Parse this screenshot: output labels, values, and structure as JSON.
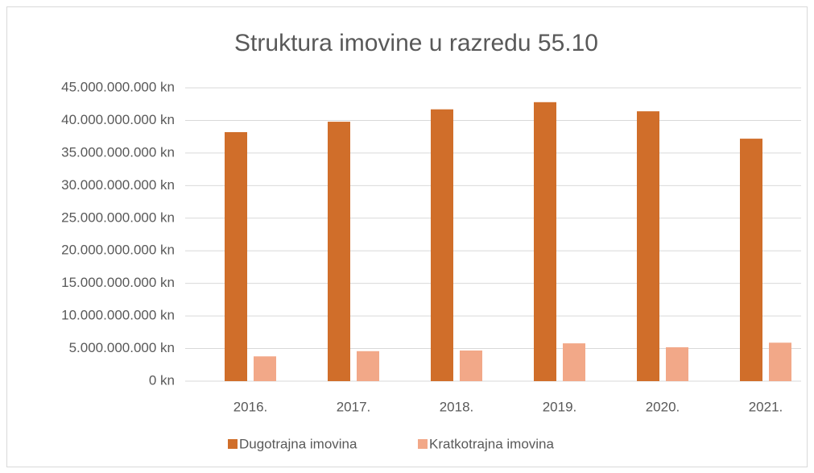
{
  "chart_data": {
    "type": "bar",
    "title": "Struktura imovine u razredu 55.10",
    "categories": [
      "2016.",
      "2017.",
      "2018.",
      "2019.",
      "2020.",
      "2021."
    ],
    "series": [
      {
        "name": "Dugotrajna imovina",
        "color": "#d06e2a",
        "values": [
          38200000000,
          39800000000,
          41700000000,
          42800000000,
          41400000000,
          37200000000
        ]
      },
      {
        "name": "Kratkotrajna imovina",
        "color": "#f2a888",
        "values": [
          3800000000,
          4600000000,
          4700000000,
          5800000000,
          5200000000,
          5900000000
        ]
      }
    ],
    "ylim": [
      0,
      45000000000
    ],
    "yticks": [
      {
        "value": 0,
        "label": "0 kn"
      },
      {
        "value": 5000000000,
        "label": "5.000.000.000 kn"
      },
      {
        "value": 10000000000,
        "label": "10.000.000.000 kn"
      },
      {
        "value": 15000000000,
        "label": "15.000.000.000 kn"
      },
      {
        "value": 20000000000,
        "label": "20.000.000.000 kn"
      },
      {
        "value": 25000000000,
        "label": "25.000.000.000 kn"
      },
      {
        "value": 30000000000,
        "label": "30.000.000.000 kn"
      },
      {
        "value": 35000000000,
        "label": "35.000.000.000 kn"
      },
      {
        "value": 40000000000,
        "label": "40.000.000.000 kn"
      },
      {
        "value": 45000000000,
        "label": "45.000.000.000 kn"
      }
    ],
    "grid": true,
    "legend": "bottom"
  }
}
